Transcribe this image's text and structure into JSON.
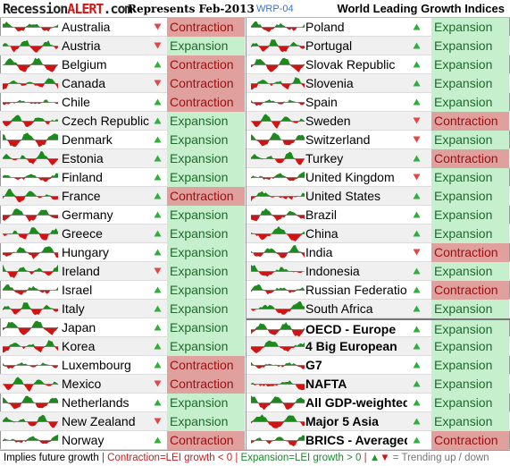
{
  "header": {
    "brand_a": "Recession",
    "brand_b": "ALERT",
    "brand_c": ".com",
    "represents": "Represents  Feb-2013",
    "code": "WRP-04",
    "title": "World Leading Growth Indices"
  },
  "footer": {
    "implies": "Implies future growth",
    "sep": " | ",
    "contraction_label": "Contraction=LEI growth < 0",
    "expansion_label": "Expansion=LEI growth > 0",
    "up_glyph": "▲",
    "down_glyph": "▼",
    "trend_text": " = Trending ",
    "up_text": "up",
    "slash": " / ",
    "down_text": "down"
  },
  "colors": {
    "expansion_bg": "#c6efce",
    "expansion_text": "#1e6a2a",
    "contraction_bg": "#dfa09e",
    "contraction_text": "#9c1010",
    "spark_up": "#1c8a1c",
    "spark_down": "#d01414",
    "trend_up": "#2fae3a",
    "trend_down": "#e04848"
  },
  "chart_data": {
    "type": "table",
    "columns": [
      "sparkline",
      "country",
      "trend",
      "status"
    ],
    "left": [
      {
        "name": "Australia",
        "trend": "down",
        "status": "Contraction"
      },
      {
        "name": "Austria",
        "trend": "down",
        "status": "Expansion"
      },
      {
        "name": "Belgium",
        "trend": "up",
        "status": "Contraction"
      },
      {
        "name": "Canada",
        "trend": "down",
        "status": "Contraction"
      },
      {
        "name": "Chile",
        "trend": "up",
        "status": "Contraction"
      },
      {
        "name": "Czech Republic",
        "trend": "up",
        "status": "Expansion"
      },
      {
        "name": "Denmark",
        "trend": "up",
        "status": "Expansion"
      },
      {
        "name": "Estonia",
        "trend": "up",
        "status": "Expansion"
      },
      {
        "name": "Finland",
        "trend": "up",
        "status": "Expansion"
      },
      {
        "name": "France",
        "trend": "up",
        "status": "Contraction"
      },
      {
        "name": "Germany",
        "trend": "up",
        "status": "Expansion"
      },
      {
        "name": "Greece",
        "trend": "up",
        "status": "Expansion"
      },
      {
        "name": "Hungary",
        "trend": "up",
        "status": "Expansion"
      },
      {
        "name": "Ireland",
        "trend": "down",
        "status": "Expansion"
      },
      {
        "name": "Israel",
        "trend": "up",
        "status": "Expansion"
      },
      {
        "name": "Italy",
        "trend": "up",
        "status": "Expansion"
      },
      {
        "name": "Japan",
        "trend": "up",
        "status": "Expansion"
      },
      {
        "name": "Korea",
        "trend": "up",
        "status": "Expansion"
      },
      {
        "name": "Luxembourg",
        "trend": "up",
        "status": "Contraction"
      },
      {
        "name": "Mexico",
        "trend": "down",
        "status": "Contraction"
      },
      {
        "name": "Netherlands",
        "trend": "up",
        "status": "Expansion"
      },
      {
        "name": "New Zealand",
        "trend": "down",
        "status": "Expansion"
      },
      {
        "name": "Norway",
        "trend": "up",
        "status": "Contraction"
      }
    ],
    "right": [
      {
        "name": "Poland",
        "trend": "up",
        "status": "Expansion"
      },
      {
        "name": "Portugal",
        "trend": "up",
        "status": "Expansion"
      },
      {
        "name": "Slovak Republic",
        "trend": "up",
        "status": "Expansion"
      },
      {
        "name": "Slovenia",
        "trend": "up",
        "status": "Expansion"
      },
      {
        "name": "Spain",
        "trend": "up",
        "status": "Expansion"
      },
      {
        "name": "Sweden",
        "trend": "down",
        "status": "Contraction"
      },
      {
        "name": "Switzerland",
        "trend": "down",
        "status": "Expansion"
      },
      {
        "name": "Turkey",
        "trend": "up",
        "status": "Contraction"
      },
      {
        "name": "United Kingdom",
        "trend": "down",
        "status": "Expansion"
      },
      {
        "name": "United States",
        "trend": "up",
        "status": "Expansion"
      },
      {
        "name": "Brazil",
        "trend": "up",
        "status": "Expansion"
      },
      {
        "name": "China",
        "trend": "up",
        "status": "Expansion"
      },
      {
        "name": "India",
        "trend": "down",
        "status": "Contraction"
      },
      {
        "name": "Indonesia",
        "trend": "up",
        "status": "Expansion"
      },
      {
        "name": "Russian Federation",
        "trend": "up",
        "status": "Contraction"
      },
      {
        "name": "South Africa",
        "trend": "up",
        "status": "Expansion"
      },
      {
        "name": "OECD - Europe",
        "trend": "up",
        "status": "Expansion",
        "bold": true
      },
      {
        "name": "4 Big European",
        "trend": "up",
        "status": "Expansion",
        "bold": true
      },
      {
        "name": "G7",
        "trend": "up",
        "status": "Expansion",
        "bold": true
      },
      {
        "name": "NAFTA",
        "trend": "up",
        "status": "Expansion",
        "bold": true
      },
      {
        "name": "All GDP-weighted",
        "trend": "up",
        "status": "Expansion",
        "bold": true
      },
      {
        "name": "Major 5 Asia",
        "trend": "up",
        "status": "Expansion",
        "bold": true
      },
      {
        "name": "BRICS - Averaged",
        "trend": "up",
        "status": "Contraction",
        "bold": true
      }
    ]
  }
}
